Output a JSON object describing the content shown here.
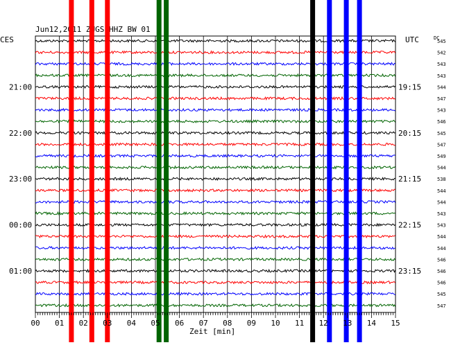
{
  "chart_data": {
    "type": "line",
    "title": "Jun12,2011   ZUGS HHZ BW 01",
    "xlabel": "Zeit [min]",
    "left_timezone": "CES",
    "right_timezone": "UTC",
    "right_unit": "DC",
    "xlim": [
      0,
      15
    ],
    "x_ticks": [
      "00",
      "01",
      "02",
      "03",
      "04",
      "05",
      "06",
      "07",
      "08",
      "09",
      "10",
      "11",
      "12",
      "13",
      "14",
      "15"
    ],
    "left_hour_labels": [
      "21:00",
      "22:00",
      "23:00",
      "00:00",
      "01:00"
    ],
    "right_time_labels": [
      "19:15",
      "20:15",
      "21:15",
      "22:15",
      "23:15"
    ],
    "trace_colors": [
      "#000000",
      "#ff0000",
      "#0000ff",
      "#006400"
    ],
    "dc_offsets": [
      545,
      542,
      543,
      543,
      544,
      547,
      543,
      546,
      545,
      547,
      549,
      544,
      538,
      544,
      544,
      543,
      543,
      544,
      544,
      546,
      546,
      546,
      545,
      547
    ],
    "strong_events": [
      {
        "minute": 1.5,
        "color": "#ff0000"
      },
      {
        "minute": 2.35,
        "color": "#ff0000"
      },
      {
        "minute": 3.0,
        "color": "#ff0000"
      },
      {
        "minute": 5.15,
        "color": "#006400"
      },
      {
        "minute": 5.45,
        "color": "#006400"
      },
      {
        "minute": 11.55,
        "color": "#000000"
      },
      {
        "minute": 12.25,
        "color": "#0000ff"
      },
      {
        "minute": 12.95,
        "color": "#0000ff"
      },
      {
        "minute": 13.5,
        "color": "#0000ff"
      }
    ]
  }
}
